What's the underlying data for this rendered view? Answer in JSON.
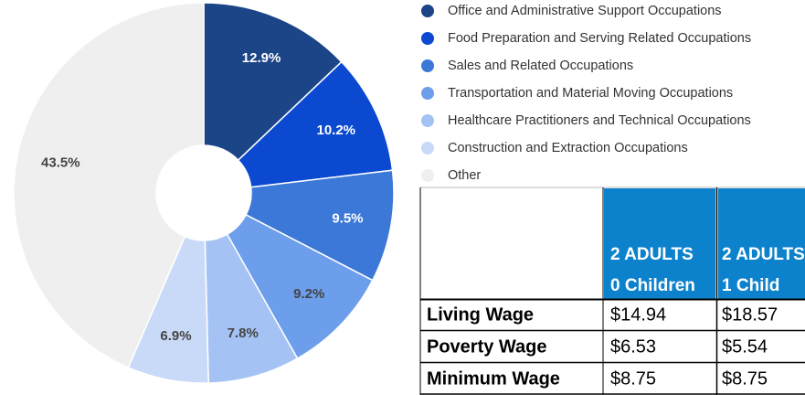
{
  "chart_data": {
    "type": "pie",
    "donut": true,
    "categories": [
      "Office and Administrative Support Occupations",
      "Food Preparation and Serving Related Occupations",
      "Sales and Related Occupations",
      "Transportation and Material Moving Occupations",
      "Healthcare Practitioners and Technical Occupations",
      "Construction and Extraction Occupations",
      "Other"
    ],
    "values": [
      12.9,
      10.2,
      9.5,
      9.2,
      7.8,
      6.9,
      43.5
    ],
    "value_labels": [
      "12.9%",
      "10.2%",
      "9.5%",
      "9.2%",
      "7.8%",
      "6.9%",
      "43.5%"
    ],
    "colors": [
      "#1c4587",
      "#0b49d1",
      "#3c78d8",
      "#6d9eeb",
      "#a4c2f4",
      "#c9daf8",
      "#efefef"
    ],
    "legend": "right"
  },
  "table": {
    "columns": [
      {
        "line1": "2 ADULTS",
        "line2": "0 Children"
      },
      {
        "line1": "2 ADULTS",
        "line2": "1 Child"
      }
    ],
    "rows": [
      {
        "label": "Living Wage",
        "values": [
          "$14.94",
          "$18.57"
        ]
      },
      {
        "label": "Poverty Wage",
        "values": [
          "$6.53",
          "$5.54"
        ]
      },
      {
        "label": "Minimum Wage",
        "values": [
          "$8.75",
          "$8.75"
        ]
      }
    ]
  }
}
